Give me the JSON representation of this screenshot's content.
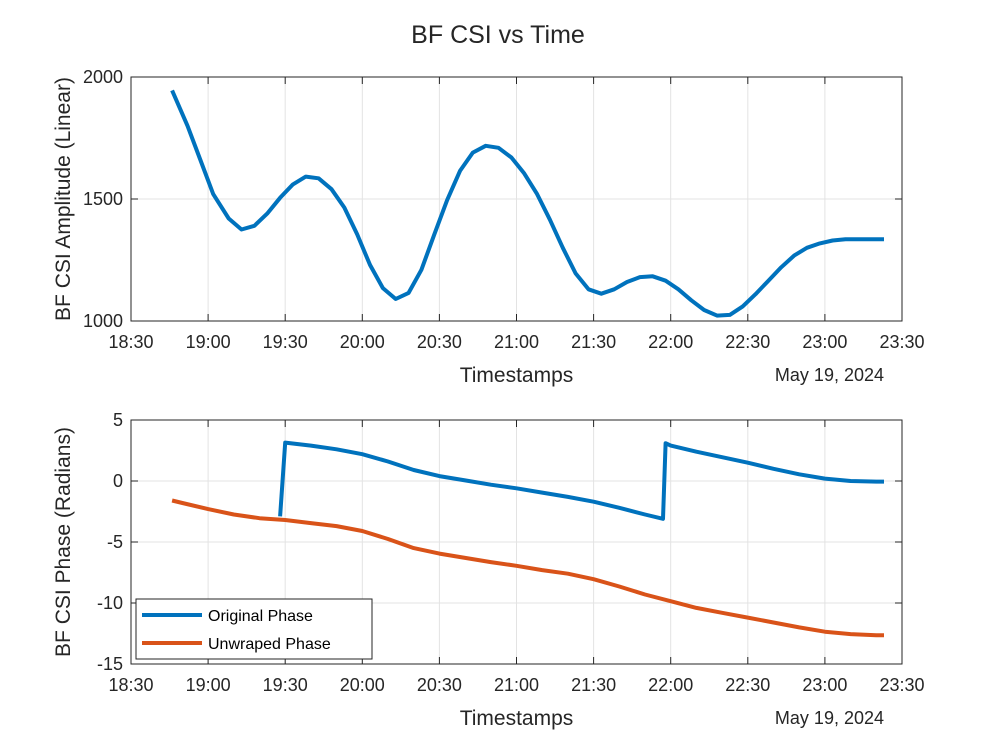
{
  "figure": {
    "title": "BF CSI vs Time"
  },
  "colors": {
    "series_blue": "#0072BD",
    "series_orange": "#D95319",
    "grid": "#e3e3e3",
    "axis": "#262626"
  },
  "chart_data": [
    {
      "type": "line",
      "title": "BF CSI vs Time",
      "xlabel": "Timestamps",
      "ylabel": "BF CSI Amplitude (Linear)",
      "date_label": "May 19, 2024",
      "xlim": [
        "18:30",
        "23:30"
      ],
      "ylim": [
        1000,
        2000
      ],
      "x_ticks": [
        "18:30",
        "19:00",
        "19:30",
        "20:00",
        "20:30",
        "21:00",
        "21:30",
        "22:00",
        "22:30",
        "23:00",
        "23:30"
      ],
      "y_ticks": [
        1000,
        1500,
        2000
      ],
      "grid": true,
      "series": [
        {
          "color": "#0072BD",
          "x": [
            "18:46",
            "18:52",
            "18:57",
            "19:02",
            "19:08",
            "19:13",
            "19:18",
            "19:23",
            "19:28",
            "19:33",
            "19:38",
            "19:43",
            "19:48",
            "19:53",
            "19:58",
            "20:03",
            "20:08",
            "20:13",
            "20:18",
            "20:23",
            "20:28",
            "20:33",
            "20:38",
            "20:43",
            "20:48",
            "20:53",
            "20:58",
            "21:03",
            "21:08",
            "21:13",
            "21:18",
            "21:23",
            "21:28",
            "21:33",
            "21:38",
            "21:43",
            "21:48",
            "21:53",
            "21:58",
            "22:03",
            "22:08",
            "22:13",
            "22:18",
            "22:23",
            "22:28",
            "22:33",
            "22:38",
            "22:43",
            "22:48",
            "22:53",
            "22:58",
            "23:03",
            "23:08",
            "23:13",
            "23:18",
            "23:23"
          ],
          "y": [
            1945,
            1800,
            1660,
            1520,
            1420,
            1375,
            1390,
            1440,
            1505,
            1560,
            1592,
            1585,
            1540,
            1465,
            1355,
            1230,
            1135,
            1090,
            1115,
            1210,
            1355,
            1495,
            1615,
            1690,
            1718,
            1710,
            1670,
            1605,
            1520,
            1415,
            1300,
            1195,
            1130,
            1112,
            1130,
            1160,
            1180,
            1183,
            1165,
            1130,
            1085,
            1045,
            1022,
            1025,
            1060,
            1110,
            1165,
            1220,
            1268,
            1300,
            1318,
            1330,
            1335,
            1335,
            1335,
            1335
          ]
        }
      ]
    },
    {
      "type": "line",
      "xlabel": "Timestamps",
      "ylabel": "BF CSI Phase (Radians)",
      "date_label": "May 19, 2024",
      "xlim": [
        "18:30",
        "23:30"
      ],
      "ylim": [
        -15,
        5
      ],
      "x_ticks": [
        "18:30",
        "19:00",
        "19:30",
        "20:00",
        "20:30",
        "21:00",
        "21:30",
        "22:00",
        "22:30",
        "23:00",
        "23:30"
      ],
      "y_ticks": [
        5,
        0,
        -5,
        -10,
        -15
      ],
      "grid": true,
      "legend_position": "bottom-left",
      "series": [
        {
          "name": "Original Phase",
          "color": "#0072BD",
          "x": [
            "19:28",
            "19:30",
            "19:40",
            "19:50",
            "20:00",
            "20:10",
            "20:20",
            "20:30",
            "20:40",
            "20:50",
            "21:00",
            "21:10",
            "21:20",
            "21:30",
            "21:40",
            "21:50",
            "21:57",
            "21:58",
            "22:00",
            "22:10",
            "22:20",
            "22:30",
            "22:40",
            "22:50",
            "23:00",
            "23:10",
            "23:20",
            "23:23"
          ],
          "y": [
            -2.9,
            3.15,
            2.9,
            2.6,
            2.2,
            1.6,
            0.9,
            0.4,
            0.05,
            -0.3,
            -0.6,
            -0.95,
            -1.3,
            -1.7,
            -2.2,
            -2.75,
            -3.1,
            3.1,
            2.9,
            2.4,
            1.95,
            1.5,
            1.0,
            0.55,
            0.2,
            0.0,
            -0.05,
            -0.05
          ]
        },
        {
          "name": "Unwraped Phase",
          "color": "#D95319",
          "x": [
            "18:46",
            "18:50",
            "19:00",
            "19:10",
            "19:20",
            "19:30",
            "19:40",
            "19:50",
            "20:00",
            "20:10",
            "20:20",
            "20:30",
            "20:40",
            "20:50",
            "21:00",
            "21:10",
            "21:20",
            "21:30",
            "21:40",
            "21:50",
            "22:00",
            "22:10",
            "22:20",
            "22:30",
            "22:40",
            "22:50",
            "23:00",
            "23:10",
            "23:20",
            "23:23"
          ],
          "y": [
            -1.6,
            -1.8,
            -2.3,
            -2.75,
            -3.05,
            -3.2,
            -3.45,
            -3.7,
            -4.1,
            -4.75,
            -5.5,
            -5.95,
            -6.3,
            -6.65,
            -6.95,
            -7.3,
            -7.6,
            -8.05,
            -8.65,
            -9.3,
            -9.85,
            -10.4,
            -10.8,
            -11.2,
            -11.6,
            -12.0,
            -12.35,
            -12.55,
            -12.65,
            -12.65
          ]
        }
      ]
    }
  ]
}
